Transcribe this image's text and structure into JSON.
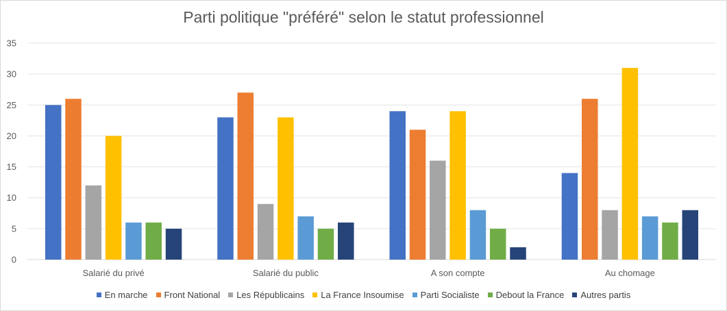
{
  "chart_data": {
    "type": "bar",
    "title": "Parti politique \"préféré\" selon le statut professionnel",
    "categories": [
      "Salarié du privé",
      "Salarié du public",
      "A son compte",
      "Au chomage"
    ],
    "series": [
      {
        "name": "En marche",
        "color": "#4472c4",
        "values": [
          25,
          23,
          24,
          14
        ]
      },
      {
        "name": "Front National",
        "color": "#ed7d31",
        "values": [
          26,
          27,
          21,
          26
        ]
      },
      {
        "name": "Les Républicains",
        "color": "#a5a5a5",
        "values": [
          12,
          9,
          16,
          8
        ]
      },
      {
        "name": "La France Insoumise",
        "color": "#ffc000",
        "values": [
          20,
          23,
          24,
          31
        ]
      },
      {
        "name": "Parti Socialiste",
        "color": "#5b9bd5",
        "values": [
          6,
          7,
          8,
          7
        ]
      },
      {
        "name": "Debout la France",
        "color": "#70ad47",
        "values": [
          6,
          5,
          5,
          6
        ]
      },
      {
        "name": "Autres partis",
        "color": "#264478",
        "values": [
          5,
          6,
          2,
          8
        ]
      }
    ],
    "ylim": [
      0,
      35
    ],
    "yticks": [
      0,
      5,
      10,
      15,
      20,
      25,
      30,
      35
    ],
    "grid": true,
    "legend_position": "bottom"
  }
}
